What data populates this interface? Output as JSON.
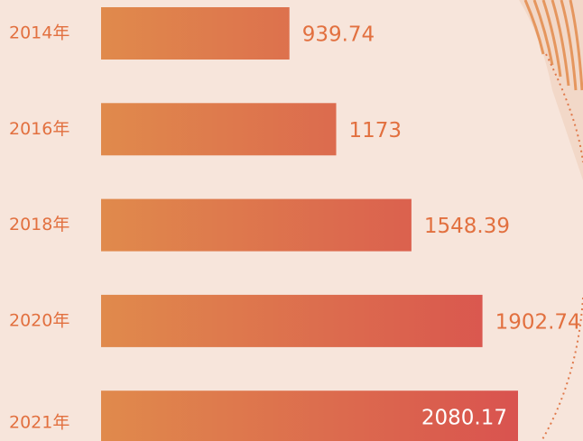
{
  "chart_data": {
    "type": "bar",
    "orientation": "horizontal",
    "categories": [
      "2014年",
      "2016年",
      "2018年",
      "2020年",
      "2021年"
    ],
    "values": [
      939.74,
      1173,
      1548.39,
      1902.74,
      2080.17
    ],
    "gradient": [
      "#e08a4c",
      "#d9534f"
    ],
    "label_color": "#e2703f"
  }
}
